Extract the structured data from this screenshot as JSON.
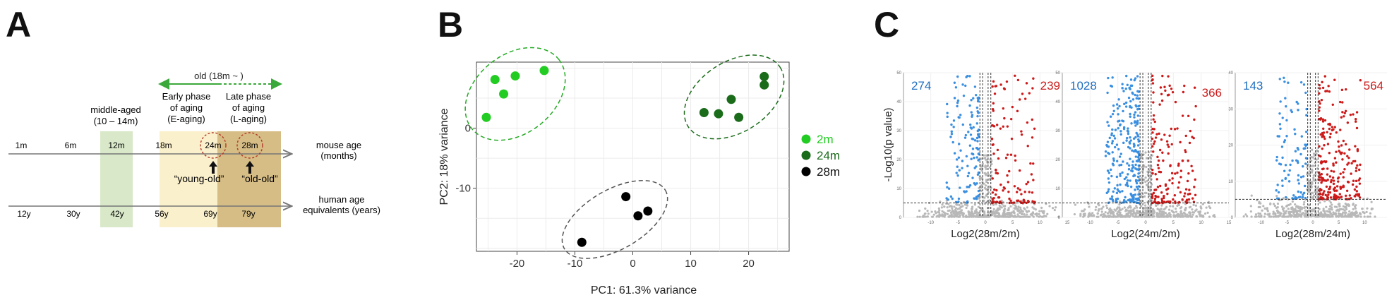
{
  "panels": {
    "a": "A",
    "b": "B",
    "c": "C"
  },
  "timeline": {
    "old_label": "old (18m ~ )",
    "middle_aged_line1": "middle-aged",
    "middle_aged_line2": "(10 – 14m)",
    "early_line1": "Early phase",
    "early_line2": "of aging",
    "early_line3": "(E-aging)",
    "late_line1": "Late phase",
    "late_line2": "of aging",
    "late_line3": "(L-aging)",
    "mouse_ticks": [
      "1m",
      "6m",
      "12m",
      "18m",
      "24m",
      "28m"
    ],
    "human_ticks": [
      "12y",
      "30y",
      "42y",
      "56y",
      "69y",
      "79y"
    ],
    "mouse_axis_line1": "mouse age",
    "mouse_axis_line2": "(months)",
    "human_axis_line1": "human age",
    "human_axis_line2": "equivalents (years)",
    "young_old": "“young-old”",
    "old_old": "“old-old”",
    "colors": {
      "middle": "#d8e8c8",
      "early": "#fbf0cc",
      "late": "#d6bd85",
      "arrow": "#3aa83a",
      "circle": "#b33a2a"
    }
  },
  "pca": {
    "chart_data": {
      "type": "scatter",
      "xlabel": "PC1: 61.3% variance",
      "ylabel": "PC2: 18% variance",
      "xticks": [
        -20,
        -10,
        0,
        10,
        20
      ],
      "yticks": [
        0,
        -10
      ],
      "xlim": [
        -27,
        27
      ],
      "ylim": [
        -20.5,
        11
      ],
      "grid": true,
      "legend_position": "right",
      "series": [
        {
          "name": "2m",
          "color": "#22cc22",
          "x": [
            -25.3,
            -23.8,
            -22.3,
            -20.3,
            -15.3
          ],
          "y": [
            1.8,
            8.1,
            5.7,
            8.7,
            9.6
          ]
        },
        {
          "name": "24m",
          "color": "#1a6b1a",
          "x": [
            12.3,
            14.8,
            17.0,
            18.3,
            22.7,
            22.7
          ],
          "y": [
            2.6,
            2.4,
            4.8,
            1.8,
            8.6,
            7.2
          ]
        },
        {
          "name": "28m",
          "color": "#000000",
          "x": [
            -8.8,
            -1.2,
            0.9,
            2.6
          ],
          "y": [
            -19.0,
            -11.4,
            -14.6,
            -13.8
          ]
        }
      ]
    }
  },
  "volcano": {
    "ylabel": "-Log10(p value)",
    "plots": [
      {
        "xlabel": "Log2(28m/2m)",
        "down": "274",
        "up": "239",
        "chart_data": {
          "type": "scatter",
          "xlim": [
            -15,
            15
          ],
          "ylim": [
            0,
            50
          ],
          "xticks": [
            -10,
            -5,
            0,
            5,
            10,
            15
          ],
          "yticks": [
            0,
            10,
            20,
            30,
            40,
            50
          ],
          "vlines": [
            -1,
            1,
            0.5,
            -0.5
          ],
          "hline": 5,
          "down_count": 274,
          "up_count": 239
        }
      },
      {
        "xlabel": "Log2(24m/2m)",
        "down": "1028",
        "up": "366",
        "chart_data": {
          "type": "scatter",
          "xlim": [
            -15,
            15
          ],
          "ylim": [
            0,
            50
          ],
          "xticks": [
            -10,
            -5,
            0,
            5,
            10,
            15
          ],
          "yticks": [
            0,
            10,
            20,
            30,
            40,
            50
          ],
          "vlines": [
            -1,
            1,
            0.5,
            -0.5
          ],
          "hline": 5,
          "down_count": 1028,
          "up_count": 366
        }
      },
      {
        "xlabel": "Log2(28m/24m)",
        "down": "143",
        "up": "564",
        "chart_data": {
          "type": "scatter",
          "xlim": [
            -15,
            15
          ],
          "ylim": [
            0,
            40
          ],
          "xticks": [
            -10,
            -5,
            0,
            5,
            10,
            15
          ],
          "yticks": [
            0,
            10,
            20,
            30,
            40
          ],
          "vlines": [
            -1,
            1,
            0.5,
            -0.5
          ],
          "hline": 5,
          "down_count": 143,
          "up_count": 564
        }
      }
    ]
  }
}
